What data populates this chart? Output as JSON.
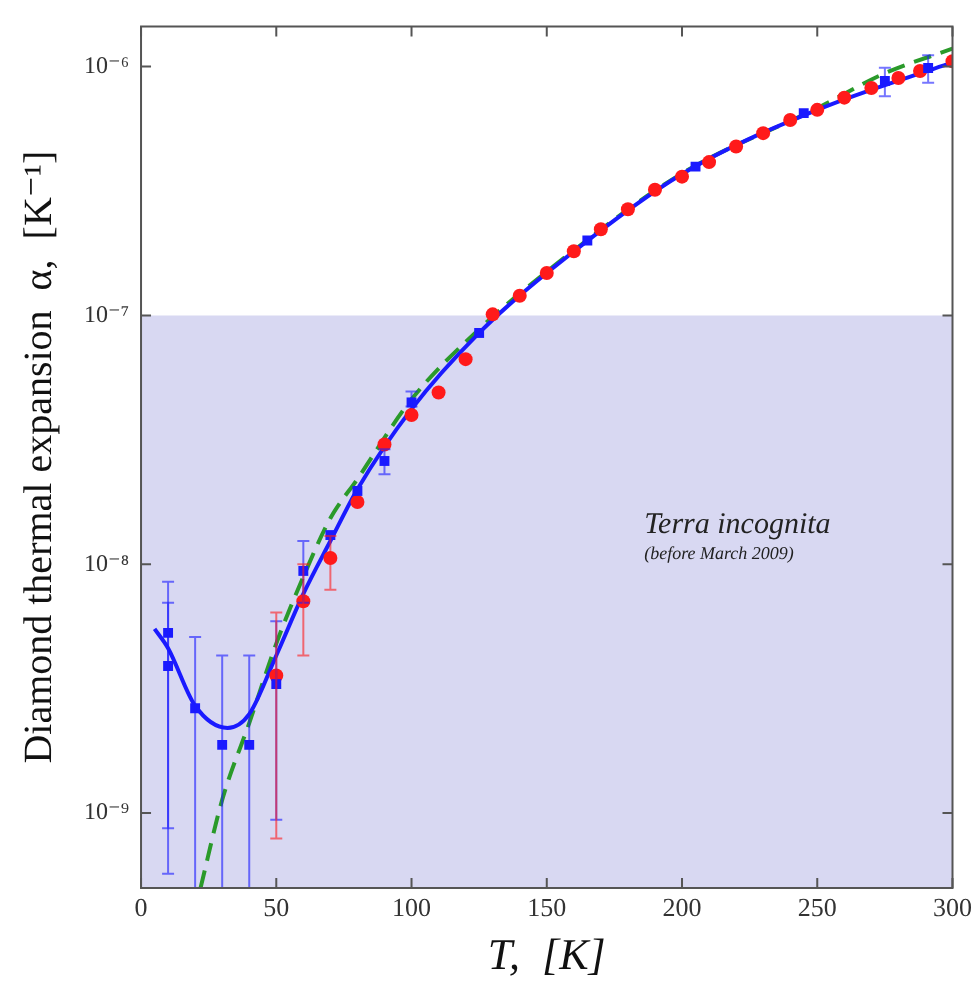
{
  "chart_data": {
    "type": "scatter",
    "xlabel": "T,  [K]",
    "ylabel": "Diamond thermal expansion  α,  [K⁻¹]",
    "log": "y",
    "legend": false,
    "xlim": [
      0,
      300
    ],
    "xticks": [
      0,
      50,
      100,
      150,
      200,
      250,
      300
    ],
    "ylim": [
      5e-10,
      1.45e-06
    ],
    "yticks": [
      {
        "value": 1e-09,
        "label": "10⁻⁹"
      },
      {
        "value": 1e-08,
        "label": "10⁻⁸"
      },
      {
        "value": 1e-07,
        "label": "10⁻⁷"
      },
      {
        "value": 1e-06,
        "label": "10⁻⁶"
      }
    ],
    "bands": [
      {
        "axis": "y",
        "from": 5e-10,
        "to": 1e-07,
        "color": "#d8d8f2",
        "label": "Terra incognita"
      }
    ],
    "annotations": [
      "(before March 2009)"
    ],
    "series": [
      {
        "type": "scatter",
        "marker": "square",
        "color": "#1a1aff",
        "x": [
          10,
          10,
          20,
          30,
          40,
          50,
          60,
          70,
          80,
          90,
          100,
          125,
          165,
          205,
          245,
          275,
          291
        ],
        "values": [
          5.3e-09,
          3.9e-09,
          2.64e-09,
          1.88e-09,
          1.88e-09,
          3.3e-09,
          9.4e-09,
          1.31e-08,
          1.97e-08,
          2.6e-08,
          4.47e-08,
          8.5e-08,
          2e-07,
          3.96e-07,
          6.5e-07,
          8.75e-07,
          9.87e-07
        ],
        "errors": [
          [
            5.7e-10,
            8.5e-09
          ],
          [
            8.7e-10,
            7e-09
          ],
          [
            5e-10,
            5.1e-09
          ],
          [
            5e-10,
            4.3e-09
          ],
          [
            5e-10,
            4.3e-09
          ],
          [
            9.4e-10,
            5.9e-09
          ],
          [
            7e-09,
            1.24e-08
          ],
          null,
          null,
          [
            2.3e-08,
            2.9e-08
          ],
          [
            4.3e-08,
            4.95e-08
          ],
          null,
          null,
          null,
          null,
          [
            7.6e-07,
            9.9e-07
          ],
          [
            8.6e-07,
            1.11e-06
          ]
        ]
      },
      {
        "type": "scatter",
        "marker": "circle",
        "color": "#ff1a1a",
        "x": [
          50,
          60,
          70,
          80,
          90,
          100,
          110,
          120,
          130,
          140,
          150,
          160,
          170,
          180,
          190,
          200,
          210,
          220,
          230,
          240,
          250,
          260,
          270,
          280,
          288,
          300
        ],
        "values": [
          3.57e-09,
          7.1e-09,
          1.06e-08,
          1.78e-08,
          3.03e-08,
          3.98e-08,
          4.9e-08,
          6.67e-08,
          1.01e-07,
          1.2e-07,
          1.48e-07,
          1.81e-07,
          2.22e-07,
          2.67e-07,
          3.2e-07,
          3.61e-07,
          4.13e-07,
          4.77e-07,
          5.4e-07,
          6.1e-07,
          6.7e-07,
          7.5e-07,
          8.2e-07,
          9e-07,
          9.6e-07,
          1.05e-06
        ],
        "errors": [
          [
            7.9e-10,
            6.4e-09
          ],
          [
            4.3e-09,
            1e-08
          ],
          [
            7.9e-09,
            1.3e-08
          ],
          null,
          null,
          null,
          null,
          null,
          null,
          null,
          null,
          null,
          null,
          null,
          null,
          null,
          null,
          null,
          null,
          null,
          null,
          null,
          null,
          null,
          null,
          null
        ]
      },
      {
        "type": "line",
        "marker": "none",
        "line_style": "solid",
        "color": "#1a1aff",
        "x": [
          5,
          10,
          20,
          32,
          40,
          50,
          60,
          70,
          80,
          100,
          125,
          150,
          200,
          250,
          300
        ],
        "values": [
          5.5e-09,
          4.6e-09,
          2.7e-09,
          2.2e-09,
          2.5e-09,
          4.3e-09,
          7.6e-09,
          1.24e-08,
          2e-08,
          4.2e-08,
          8.5e-08,
          1.48e-07,
          3.7e-07,
          6.7e-07,
          1.04e-06
        ]
      },
      {
        "type": "line",
        "marker": "none",
        "line_style": "dashed",
        "color": "#2a9a2a",
        "x": [
          22,
          30,
          40,
          50,
          60,
          70,
          80,
          100,
          125,
          150,
          200,
          250,
          275,
          300
        ],
        "values": [
          5e-10,
          1.13e-09,
          2.3e-09,
          4.8e-09,
          8.9e-09,
          1.53e-08,
          2.2e-08,
          4.6e-08,
          8.8e-08,
          1.5e-07,
          3.72e-07,
          6.8e-07,
          9.4e-07,
          1.18e-06
        ]
      }
    ]
  }
}
